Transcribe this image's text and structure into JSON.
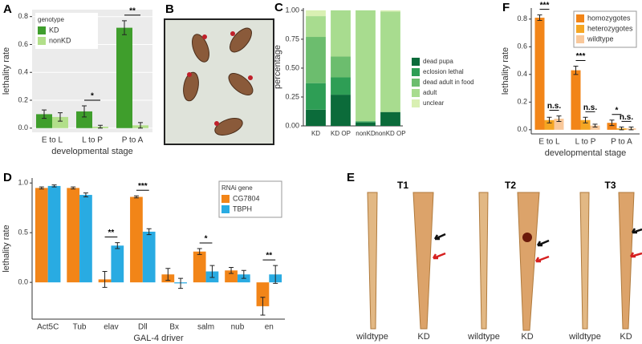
{
  "chart_data": [
    {
      "type": "grouped_bar",
      "panel": "A",
      "xlabel": "developmental stage",
      "ylabel": "lethality rate",
      "categories": [
        "E to L",
        "L to P",
        "P to A"
      ],
      "series": [
        {
          "name": "KD",
          "color": "#3f9e2c",
          "values": [
            0.1,
            0.12,
            0.72
          ],
          "errors": [
            0.03,
            0.04,
            0.05
          ]
        },
        {
          "name": "nonKD",
          "color": "#b2df8a",
          "values": [
            0.08,
            0.01,
            0.02
          ],
          "errors": [
            0.03,
            0.01,
            0.02
          ]
        }
      ],
      "ylim": [
        -0.03,
        0.85
      ],
      "yticks": [
        {
          "value": 0,
          "label": "0.0"
        },
        0.2,
        0.4,
        0.6,
        0.8
      ],
      "grid": true,
      "background": "#ebebeb",
      "legend_title": "genotype",
      "legend_loc": "upper left",
      "significance": [
        {
          "category": "L to P",
          "between": [
            "KD",
            "nonKD"
          ],
          "label": "*"
        },
        {
          "category": "P to A",
          "between": [
            "KD",
            "nonKD"
          ],
          "label": "**"
        }
      ]
    },
    {
      "type": "stacked_bar",
      "panel": "C",
      "ylabel": "percentage",
      "categories": [
        "KD",
        "KD OP",
        "nonKD",
        "nonKD OP"
      ],
      "series": [
        {
          "name": "dead pupa",
          "color": "#0b6b3a",
          "values": [
            0.14,
            0.27,
            0.03,
            0.12
          ]
        },
        {
          "name": "eclosion lethal",
          "color": "#2e9e55",
          "values": [
            0.23,
            0.15,
            0.01,
            0
          ]
        },
        {
          "name": "dead adult in food",
          "color": "#6cbd6e",
          "values": [
            0.4,
            0.18,
            0,
            0
          ]
        },
        {
          "name": "adult",
          "color": "#a8dc8f",
          "values": [
            0.18,
            0.4,
            0.96,
            0.87
          ]
        },
        {
          "name": "unclear",
          "color": "#d9f0b3",
          "values": [
            0.05,
            0,
            0,
            0.01
          ]
        }
      ],
      "ylim": [
        0,
        1.02
      ],
      "yticks": [
        {
          "value": 0,
          "label": "0.00"
        },
        {
          "value": 0.25,
          "label": "0.25"
        },
        {
          "value": 0.5,
          "label": "0.50"
        },
        {
          "value": 0.75,
          "label": "0.75"
        },
        {
          "value": 1,
          "label": "1.00"
        }
      ],
      "grid": false,
      "background": "#ffffff",
      "legend_loc": "right"
    },
    {
      "type": "grouped_bar",
      "panel": "D",
      "xlabel": "GAL-4 driver",
      "ylabel": "lethality rate",
      "categories": [
        "Act5C",
        "Tub",
        "elav",
        "Dll",
        "Bx",
        "salm",
        "nub",
        "en"
      ],
      "series": [
        {
          "name": "CG7804",
          "color": "#f28518",
          "values": [
            0.95,
            0.95,
            0.03,
            0.86,
            0.08,
            0.31,
            0.12,
            -0.24
          ],
          "errors": [
            0.01,
            0.01,
            0.08,
            0.01,
            0.06,
            0.03,
            0.03,
            0.09
          ]
        },
        {
          "name": "TBPH",
          "color": "#29abe2",
          "values": [
            0.97,
            0.88,
            0.37,
            0.51,
            -0.01,
            0.11,
            0.08,
            0.08
          ],
          "errors": [
            0.01,
            0.02,
            0.03,
            0.03,
            0.05,
            0.06,
            0.04,
            0.09
          ]
        }
      ],
      "ylim": [
        -0.37,
        1.05
      ],
      "yticks": [
        {
          "value": 0,
          "label": "0.0"
        },
        0.5,
        {
          "value": 1,
          "label": "1.0"
        }
      ],
      "grid": false,
      "background": "#ffffff",
      "legend_title": "RNAi gene",
      "legend_loc": "upper right",
      "significance": [
        {
          "category": "elav",
          "between": [
            "CG7804",
            "TBPH"
          ],
          "label": "**"
        },
        {
          "category": "Dll",
          "between": [
            "CG7804",
            "TBPH"
          ],
          "label": "***"
        },
        {
          "category": "salm",
          "between": [
            "CG7804",
            "TBPH"
          ],
          "label": "*"
        },
        {
          "category": "en",
          "between": [
            "CG7804",
            "TBPH"
          ],
          "label": "**"
        }
      ]
    },
    {
      "type": "grouped_bar",
      "panel": "F",
      "xlabel": "developmental stage",
      "ylabel": "lethality rate",
      "categories": [
        "E to L",
        "L to P",
        "P to A"
      ],
      "series": [
        {
          "name": "homozygotes",
          "color": "#f28518",
          "values": [
            0.81,
            0.43,
            0.05
          ],
          "errors": [
            0.02,
            0.03,
            0.02
          ]
        },
        {
          "name": "heterozygotes",
          "color": "#f5a623",
          "values": [
            0.07,
            0.07,
            0.01
          ],
          "errors": [
            0.02,
            0.02,
            0.01
          ]
        },
        {
          "name": "wildtype",
          "color": "#f9c89a",
          "values": [
            0.08,
            0.03,
            0.01
          ],
          "errors": [
            0.02,
            0.01,
            0.01
          ]
        }
      ],
      "ylim": [
        -0.03,
        0.88
      ],
      "yticks": [
        {
          "value": 0,
          "label": "0.0"
        },
        0.2,
        0.4,
        0.6,
        0.8
      ],
      "grid": false,
      "background": "#ffffff",
      "legend_loc": "upper right",
      "significance": [
        {
          "category": "E to L",
          "between": [
            "homozygotes",
            "heterozygotes"
          ],
          "label": "***"
        },
        {
          "category": "E to L",
          "between": [
            "heterozygotes",
            "wildtype"
          ],
          "label": "n.s."
        },
        {
          "category": "L to P",
          "between": [
            "homozygotes",
            "heterozygotes"
          ],
          "label": "***"
        },
        {
          "category": "L to P",
          "between": [
            "heterozygotes",
            "wildtype"
          ],
          "label": "n.s."
        },
        {
          "category": "P to A",
          "between": [
            "homozygotes",
            "heterozygotes"
          ],
          "label": "*"
        },
        {
          "category": "P to A",
          "between": [
            "heterozygotes",
            "wildtype"
          ],
          "label": "n.s."
        }
      ]
    }
  ],
  "photos": {
    "B": {
      "panel": "B"
    },
    "E": {
      "panel": "E",
      "groups": [
        {
          "title": "T1",
          "labels": [
            "wildtype",
            "KD"
          ]
        },
        {
          "title": "T2",
          "labels": [
            "wildtype",
            "KD"
          ]
        },
        {
          "title": "T3",
          "labels": [
            "wildtype",
            "KD"
          ]
        }
      ]
    }
  }
}
